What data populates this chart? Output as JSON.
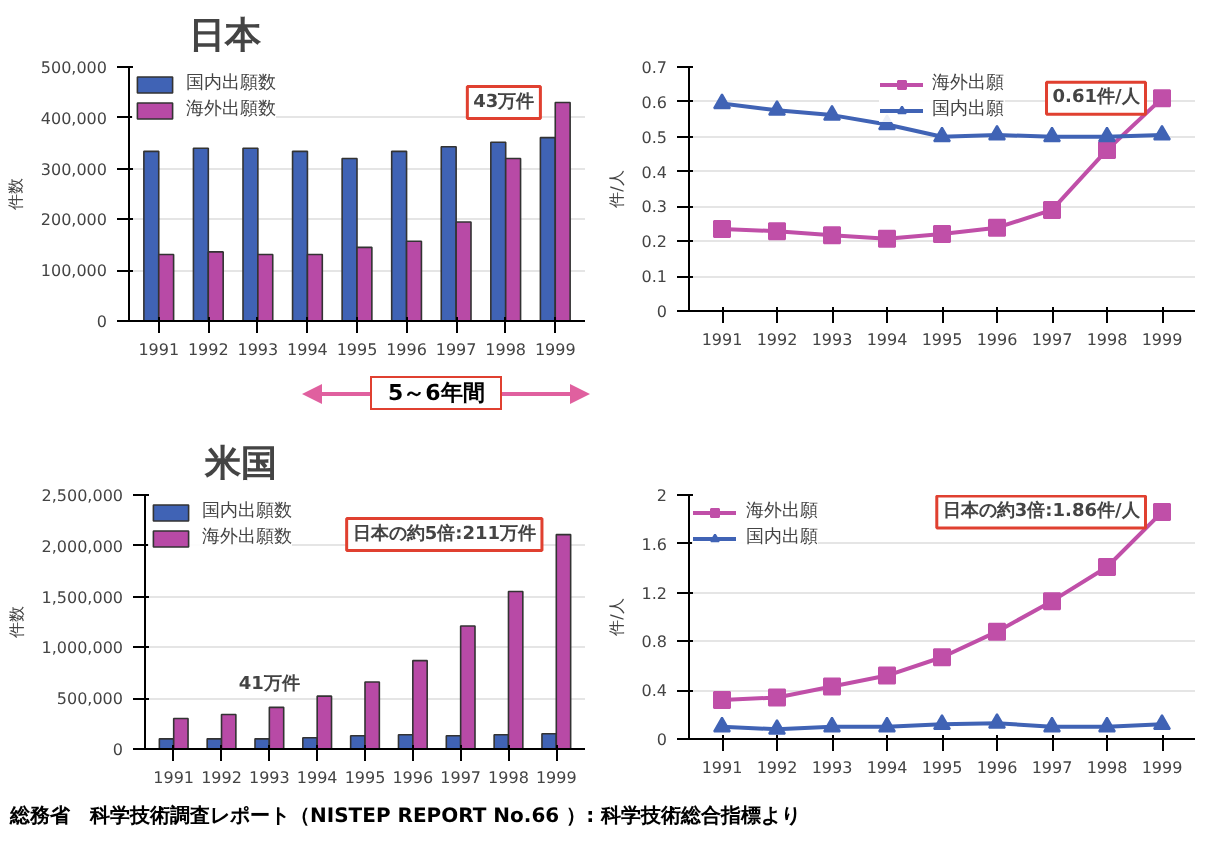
{
  "chart_data": [
    {
      "type": "bar",
      "title": "日本",
      "ylabel": "件数",
      "categories": [
        "1991",
        "1992",
        "1993",
        "1994",
        "1995",
        "1996",
        "1997",
        "1998",
        "1999"
      ],
      "series": [
        {
          "name": "国内出願数",
          "color": "#4063b5",
          "values": [
            334000,
            340000,
            340000,
            334000,
            320000,
            334000,
            343000,
            352000,
            361000
          ]
        },
        {
          "name": "海外出願数",
          "color": "#b84aa6",
          "values": [
            131000,
            136000,
            131000,
            131000,
            145000,
            157000,
            195000,
            320000,
            430000
          ]
        }
      ],
      "ylim": [
        0,
        500000
      ],
      "yticks": [
        0,
        {
          "value": 100000,
          "label": "100,000"
        },
        {
          "value": 200000,
          "label": "200,000"
        },
        {
          "value": 300000,
          "label": "300,000"
        },
        {
          "value": 400000,
          "label": "400,000"
        },
        {
          "value": 500000,
          "label": "500,000"
        }
      ],
      "grid": "y",
      "legend": "top left",
      "annotations": [
        {
          "text": "43万件",
          "x": "1999",
          "y": 430000
        },
        "5～6年間"
      ]
    },
    {
      "type": "line",
      "ylabel": "件/人",
      "categories": [
        "1991",
        "1992",
        "1993",
        "1994",
        "1995",
        "1996",
        "1997",
        "1998",
        "1999"
      ],
      "series": [
        {
          "name": "海外出願",
          "color": "#c04fa8",
          "marker": "square",
          "values": [
            0.235,
            0.229,
            0.217,
            0.207,
            0.221,
            0.239,
            0.29,
            0.462,
            0.61
          ]
        },
        {
          "name": "国内出願",
          "color": "#4063b5",
          "marker": "triangle",
          "values": [
            0.595,
            0.576,
            0.562,
            0.535,
            0.5,
            0.505,
            0.5,
            0.5,
            0.505
          ]
        }
      ],
      "ylim": [
        0,
        0.7
      ],
      "yticks": [
        0,
        0.1,
        0.2,
        0.3,
        0.4,
        0.5,
        0.6,
        0.7
      ],
      "grid": "y",
      "legend": "top",
      "annotations": [
        {
          "text": "0.61件/人",
          "x": "1999",
          "y": 0.61
        }
      ]
    },
    {
      "type": "bar",
      "title": "米国",
      "ylabel": "件数",
      "categories": [
        "1991",
        "1992",
        "1993",
        "1994",
        "1995",
        "1996",
        "1997",
        "1998",
        "1999"
      ],
      "series": [
        {
          "name": "国内出願数",
          "color": "#4063b5",
          "values": [
            100000,
            100000,
            100000,
            110000,
            130000,
            140000,
            130000,
            140000,
            150000
          ]
        },
        {
          "name": "海外出願数",
          "color": "#b84aa6",
          "values": [
            300000,
            340000,
            410000,
            520000,
            660000,
            870000,
            1210000,
            1550000,
            2110000
          ]
        }
      ],
      "ylim": [
        0,
        2500000
      ],
      "yticks": [
        0,
        {
          "value": 500000,
          "label": "500,000"
        },
        {
          "value": 1000000,
          "label": "1,000,000"
        },
        {
          "value": 1500000,
          "label": "1,500,000"
        },
        {
          "value": 2000000,
          "label": "2,000,000"
        },
        {
          "value": 2500000,
          "label": "2,500,000"
        }
      ],
      "grid": "y",
      "legend": "top left",
      "annotations": [
        {
          "text": "41万件",
          "x": "1993",
          "y": 410000
        },
        {
          "text": "日本の約5倍:211万件",
          "x": "1999",
          "y": 2110000
        }
      ]
    },
    {
      "type": "line",
      "ylabel": "件/人",
      "categories": [
        "1991",
        "1992",
        "1993",
        "1994",
        "1995",
        "1996",
        "1997",
        "1998",
        "1999"
      ],
      "series": [
        {
          "name": "海外出願",
          "color": "#c04fa8",
          "marker": "square",
          "values": [
            0.32,
            0.34,
            0.43,
            0.52,
            0.67,
            0.88,
            1.13,
            1.41,
            1.86
          ]
        },
        {
          "name": "国内出願",
          "color": "#4063b5",
          "marker": "triangle",
          "values": [
            0.1,
            0.08,
            0.1,
            0.1,
            0.12,
            0.13,
            0.1,
            0.1,
            0.12
          ]
        }
      ],
      "ylim": [
        0,
        2
      ],
      "yticks": [
        0,
        0.4,
        0.8,
        1.2,
        1.6,
        2
      ],
      "grid": "y",
      "legend": "top left",
      "annotations": [
        {
          "text": "日本の約3倍:1.86件/人",
          "x": "1999",
          "y": 1.86
        },
        "総務省　科学技術調査レポート（NISTEP REPORT No.66 ）: 科学技術総合指標より"
      ]
    }
  ]
}
